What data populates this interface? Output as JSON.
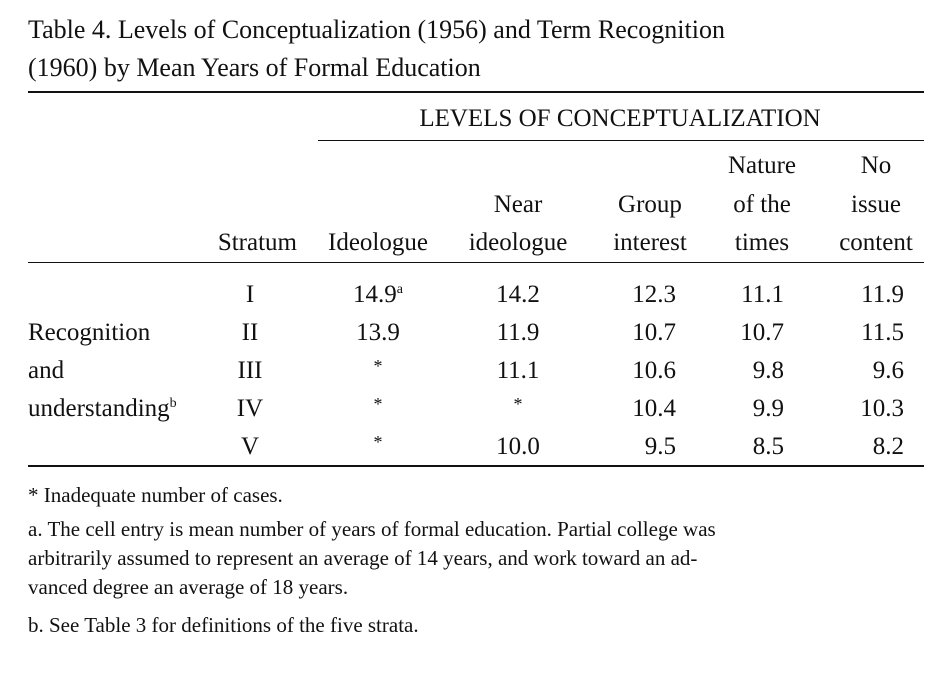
{
  "title": {
    "line1": "Table 4. Levels of Conceptualization (1956) and Term Recognition",
    "line2": "(1960) by Mean Years of Formal Education"
  },
  "spanner": "LEVELS OF CONCEPTUALIZATION",
  "headers": {
    "stratum": "Stratum",
    "ideologue": "Ideologue",
    "near_ideologue": [
      "Near",
      "ideologue"
    ],
    "group_interest": [
      "Group",
      "interest"
    ],
    "nature_of_times": [
      "Nature",
      "of the",
      "times"
    ],
    "no_issue_content": [
      "No",
      "issue",
      "content"
    ]
  },
  "row_label": {
    "lines": [
      "Recognition",
      "and",
      "understanding"
    ],
    "footnote_mark": "b"
  },
  "rows": [
    {
      "stratum": "I",
      "ideologue": "14.9",
      "ideologue_mark": "a",
      "near": "14.2",
      "group": "12.3",
      "nature": "11.1",
      "noissue": "11.9"
    },
    {
      "stratum": "II",
      "ideologue": "13.9",
      "near": "11.9",
      "group": "10.7",
      "nature": "10.7",
      "noissue": "11.5"
    },
    {
      "stratum": "III",
      "ideologue": "*",
      "near": "11.1",
      "group": "10.6",
      "nature": "9.8",
      "noissue": "9.6"
    },
    {
      "stratum": "IV",
      "ideologue": "*",
      "near": "*",
      "group": "10.4",
      "nature": "9.9",
      "noissue": "10.3"
    },
    {
      "stratum": "V",
      "ideologue": "*",
      "near": "10.0",
      "group": "9.5",
      "nature": "8.5",
      "noissue": "8.2"
    }
  ],
  "footnotes": {
    "star": "* Inadequate number of cases.",
    "a_line1": "a. The cell entry is mean number of years of formal education. Partial college was",
    "a_line2": "arbitrarily assumed to represent an average of 14 years, and work toward an ad-",
    "a_line3": "vanced degree an average of 18 years.",
    "b": "b. See Table 3 for definitions of the five strata."
  }
}
